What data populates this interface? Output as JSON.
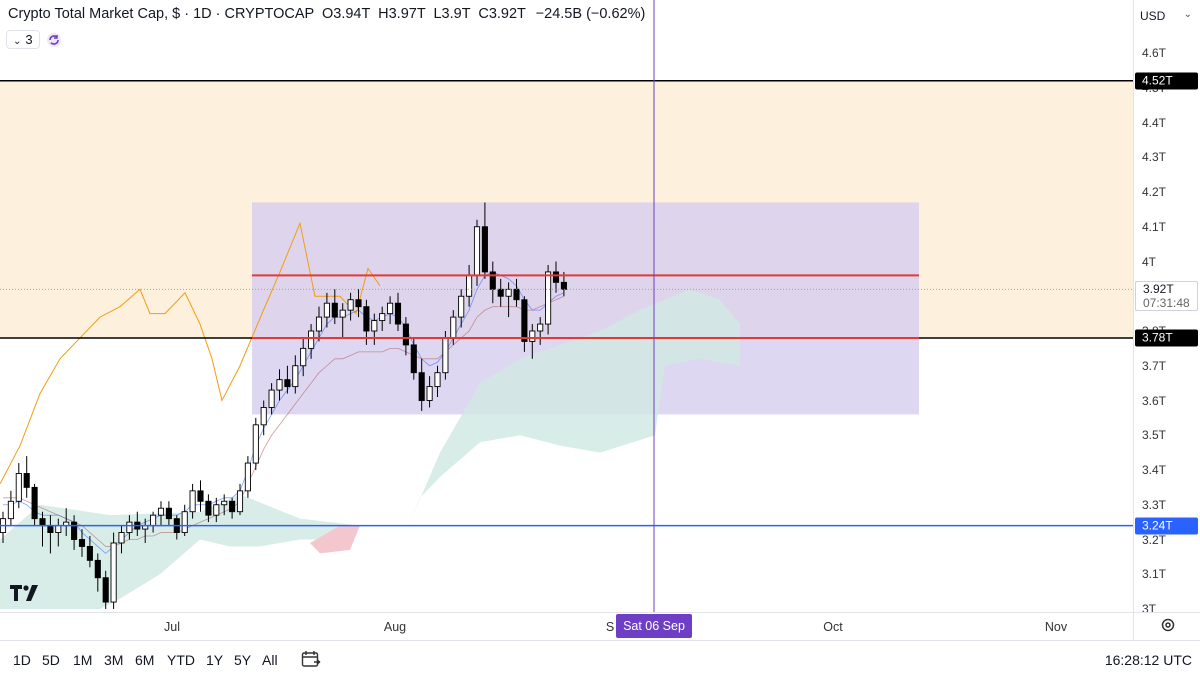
{
  "header": {
    "title": "Crypto Total Market Cap, $ · 1D · CRYPTOCAP",
    "open_key": "O",
    "open": "3.94T",
    "high_key": "H",
    "high": "3.97T",
    "low_key": "L",
    "low": "3.9T",
    "close_key": "C",
    "close": "3.92T",
    "change": "−24.5B (−0.62%)",
    "indicator_count": "3"
  },
  "currency": "USD",
  "price_ticks": [
    "4.6T",
    "4.5T",
    "4.4T",
    "4.3T",
    "4.2T",
    "4.1T",
    "4T",
    "3.9T",
    "3.8T",
    "3.7T",
    "3.6T",
    "3.5T",
    "3.4T",
    "3.3T",
    "3.2T",
    "3.1T",
    "3T"
  ],
  "price_labels": {
    "upper_line": "4.52T",
    "current_price": "3.92T",
    "countdown": "07:31:48",
    "lower_line": "3.78T",
    "support_line": "3.24T"
  },
  "time_labels": [
    "Jul",
    "Aug",
    "S",
    "Oct",
    "Nov"
  ],
  "crosshair_date": "Sat 06 Sep",
  "ranges": [
    "1D",
    "5D",
    "1M",
    "3M",
    "6M",
    "YTD",
    "1Y",
    "5Y",
    "All"
  ],
  "clock": "16:28:12 UTC",
  "colors": {
    "up_candle": "#ffffff",
    "down_candle": "#000000",
    "zone_orange": "#fdf0dc",
    "box_purple": "#d8d0ee",
    "cloud_green": "#cfe9e2",
    "red_line": "#e53935",
    "blue_line": "#2962ff",
    "crosshair": "#6e3fc4"
  },
  "chart_data": {
    "type": "candlestick",
    "y_axis_unit": "T USD",
    "ylim": [
      2.97,
      4.72
    ],
    "horizontal_levels": [
      4.52,
      3.78,
      3.24
    ],
    "range_box": {
      "top": 4.17,
      "bottom": 3.56
    },
    "red_levels": [
      3.96,
      3.78
    ],
    "candles": [
      [
        3.22,
        3.28,
        3.19,
        3.26
      ],
      [
        3.26,
        3.34,
        3.24,
        3.31
      ],
      [
        3.31,
        3.42,
        3.29,
        3.39
      ],
      [
        3.39,
        3.44,
        3.32,
        3.35
      ],
      [
        3.35,
        3.36,
        3.24,
        3.26
      ],
      [
        3.26,
        3.28,
        3.18,
        3.24
      ],
      [
        3.24,
        3.27,
        3.16,
        3.22
      ],
      [
        3.22,
        3.26,
        3.18,
        3.24
      ],
      [
        3.24,
        3.29,
        3.21,
        3.25
      ],
      [
        3.25,
        3.27,
        3.17,
        3.2
      ],
      [
        3.2,
        3.23,
        3.15,
        3.18
      ],
      [
        3.18,
        3.21,
        3.12,
        3.14
      ],
      [
        3.14,
        3.16,
        3.05,
        3.09
      ],
      [
        3.09,
        3.11,
        3.0,
        3.02
      ],
      [
        3.02,
        3.22,
        3.0,
        3.19
      ],
      [
        3.19,
        3.24,
        3.16,
        3.22
      ],
      [
        3.22,
        3.27,
        3.2,
        3.25
      ],
      [
        3.25,
        3.28,
        3.21,
        3.23
      ],
      [
        3.23,
        3.26,
        3.19,
        3.24
      ],
      [
        3.24,
        3.28,
        3.22,
        3.27
      ],
      [
        3.27,
        3.31,
        3.24,
        3.29
      ],
      [
        3.29,
        3.31,
        3.24,
        3.26
      ],
      [
        3.26,
        3.27,
        3.2,
        3.22
      ],
      [
        3.22,
        3.3,
        3.21,
        3.28
      ],
      [
        3.28,
        3.36,
        3.26,
        3.34
      ],
      [
        3.34,
        3.37,
        3.28,
        3.31
      ],
      [
        3.31,
        3.33,
        3.25,
        3.27
      ],
      [
        3.27,
        3.32,
        3.25,
        3.3
      ],
      [
        3.3,
        3.33,
        3.27,
        3.31
      ],
      [
        3.31,
        3.32,
        3.26,
        3.28
      ],
      [
        3.28,
        3.36,
        3.27,
        3.34
      ],
      [
        3.34,
        3.44,
        3.32,
        3.42
      ],
      [
        3.42,
        3.55,
        3.4,
        3.53
      ],
      [
        3.53,
        3.6,
        3.5,
        3.58
      ],
      [
        3.58,
        3.65,
        3.56,
        3.63
      ],
      [
        3.63,
        3.69,
        3.6,
        3.66
      ],
      [
        3.66,
        3.7,
        3.62,
        3.64
      ],
      [
        3.64,
        3.73,
        3.62,
        3.7
      ],
      [
        3.7,
        3.78,
        3.67,
        3.75
      ],
      [
        3.75,
        3.82,
        3.72,
        3.8
      ],
      [
        3.8,
        3.87,
        3.77,
        3.84
      ],
      [
        3.84,
        3.91,
        3.81,
        3.88
      ],
      [
        3.88,
        3.92,
        3.82,
        3.84
      ],
      [
        3.84,
        3.88,
        3.78,
        3.86
      ],
      [
        3.86,
        3.91,
        3.83,
        3.89
      ],
      [
        3.89,
        3.92,
        3.84,
        3.87
      ],
      [
        3.87,
        3.89,
        3.76,
        3.8
      ],
      [
        3.8,
        3.85,
        3.76,
        3.83
      ],
      [
        3.83,
        3.87,
        3.8,
        3.85
      ],
      [
        3.85,
        3.9,
        3.82,
        3.88
      ],
      [
        3.88,
        3.91,
        3.8,
        3.82
      ],
      [
        3.82,
        3.84,
        3.73,
        3.76
      ],
      [
        3.76,
        3.78,
        3.66,
        3.68
      ],
      [
        3.68,
        3.72,
        3.57,
        3.6
      ],
      [
        3.6,
        3.67,
        3.58,
        3.64
      ],
      [
        3.64,
        3.7,
        3.61,
        3.68
      ],
      [
        3.68,
        3.8,
        3.66,
        3.78
      ],
      [
        3.78,
        3.86,
        3.76,
        3.84
      ],
      [
        3.84,
        3.92,
        3.81,
        3.9
      ],
      [
        3.9,
        3.99,
        3.87,
        3.96
      ],
      [
        3.96,
        4.12,
        3.93,
        4.1
      ],
      [
        4.1,
        4.17,
        3.95,
        3.97
      ],
      [
        3.97,
        4.0,
        3.88,
        3.92
      ],
      [
        3.92,
        3.95,
        3.87,
        3.9
      ],
      [
        3.9,
        3.94,
        3.84,
        3.92
      ],
      [
        3.92,
        3.95,
        3.87,
        3.89
      ],
      [
        3.89,
        3.9,
        3.74,
        3.77
      ],
      [
        3.77,
        3.82,
        3.72,
        3.8
      ],
      [
        3.8,
        3.84,
        3.76,
        3.82
      ],
      [
        3.82,
        3.99,
        3.79,
        3.97
      ],
      [
        3.97,
        4.0,
        3.91,
        3.94
      ],
      [
        3.94,
        3.97,
        3.9,
        3.92
      ]
    ],
    "conversion_line": [
      3.3,
      3.3,
      3.31,
      3.3,
      3.28,
      3.27,
      3.27,
      3.27,
      3.26,
      3.25,
      3.22,
      3.2,
      3.18,
      3.16,
      3.18,
      3.2,
      3.22,
      3.24,
      3.25,
      3.26,
      3.27,
      3.27,
      3.27,
      3.28,
      3.3,
      3.3,
      3.3,
      3.31,
      3.32,
      3.32,
      3.34,
      3.4,
      3.47,
      3.52,
      3.56,
      3.6,
      3.63,
      3.66,
      3.7,
      3.74,
      3.78,
      3.82,
      3.84,
      3.84,
      3.85,
      3.86,
      3.84,
      3.83,
      3.84,
      3.85,
      3.84,
      3.81,
      3.76,
      3.72,
      3.7,
      3.71,
      3.74,
      3.78,
      3.82,
      3.86,
      3.92,
      3.96,
      3.97,
      3.96,
      3.95,
      3.93,
      3.89,
      3.86,
      3.86,
      3.88,
      3.9,
      3.91
    ],
    "base_line": [
      3.32,
      3.32,
      3.32,
      3.31,
      3.3,
      3.29,
      3.28,
      3.27,
      3.26,
      3.25,
      3.24,
      3.22,
      3.2,
      3.18,
      3.18,
      3.19,
      3.2,
      3.2,
      3.21,
      3.21,
      3.22,
      3.22,
      3.22,
      3.23,
      3.24,
      3.25,
      3.26,
      3.27,
      3.28,
      3.29,
      3.31,
      3.36,
      3.41,
      3.46,
      3.5,
      3.53,
      3.56,
      3.59,
      3.62,
      3.65,
      3.68,
      3.7,
      3.72,
      3.72,
      3.73,
      3.74,
      3.74,
      3.74,
      3.74,
      3.75,
      3.75,
      3.74,
      3.73,
      3.72,
      3.72,
      3.72,
      3.74,
      3.76,
      3.78,
      3.8,
      3.84,
      3.86,
      3.87,
      3.87,
      3.87,
      3.87,
      3.86,
      3.86,
      3.87,
      3.88,
      3.89,
      3.9
    ]
  }
}
